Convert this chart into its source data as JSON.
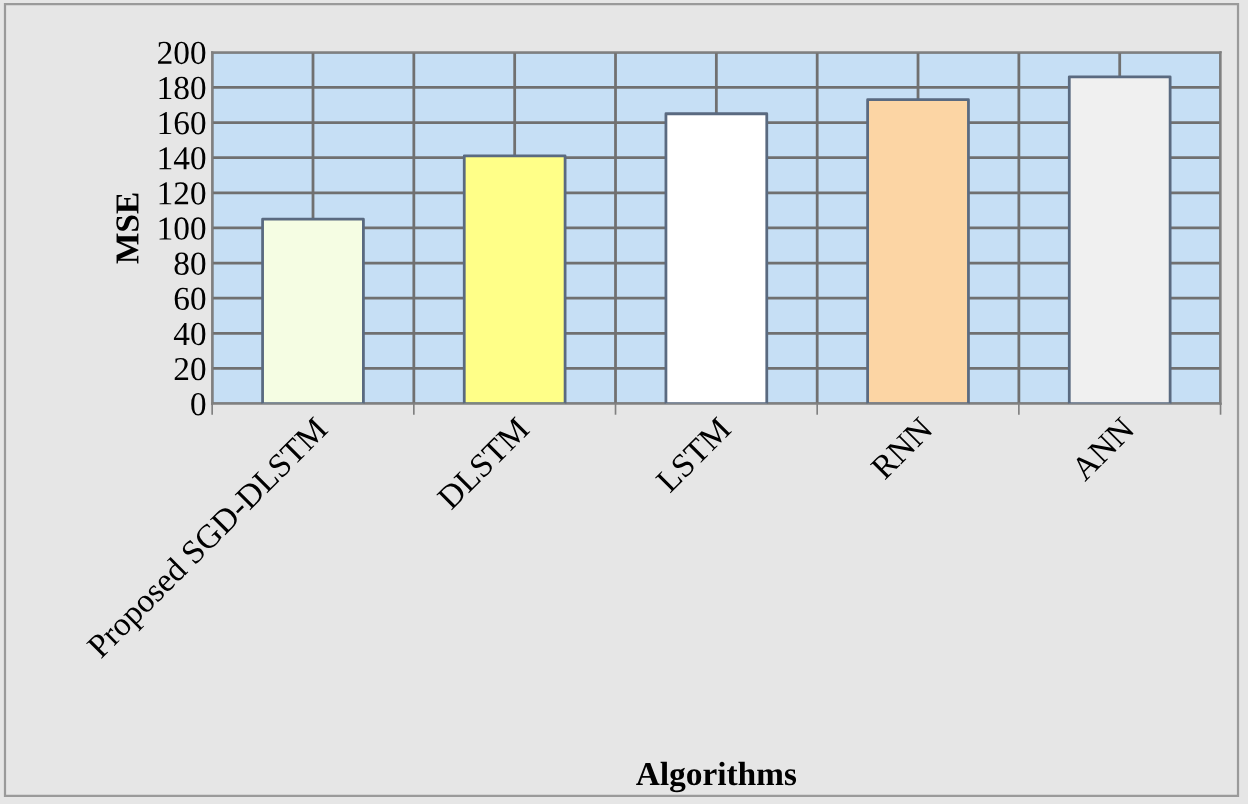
{
  "chart_data": {
    "type": "bar",
    "xlabel": "Algorithms",
    "ylabel": "MSE",
    "categories": [
      "Proposed SGD-DLSTM",
      "DLSTM",
      "LSTM",
      "RNN",
      "ANN"
    ],
    "values": [
      105,
      141,
      165,
      173,
      186
    ],
    "colors": [
      "#f5fde3",
      "#ffff88",
      "#ffffff",
      "#fcd5a4",
      "#f0f0f0"
    ],
    "ylim": [
      0,
      200
    ],
    "yticks": [
      0,
      20,
      40,
      60,
      80,
      100,
      120,
      140,
      160,
      180,
      200
    ],
    "grid": true,
    "legend": false
  }
}
